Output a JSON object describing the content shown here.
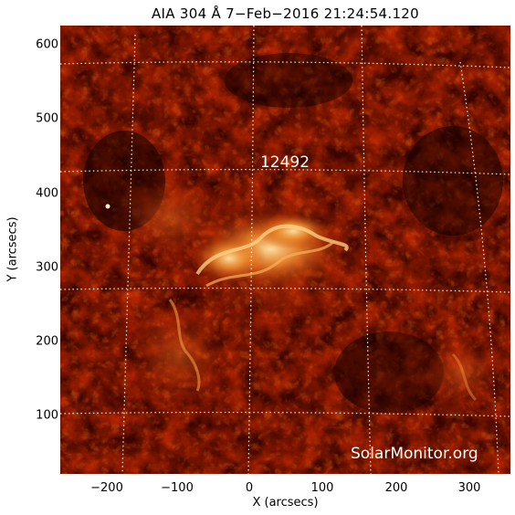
{
  "header": {
    "title": "AIA 304 Å  7−Feb−2016 21:24:54.120"
  },
  "axes": {
    "x_label": "X (arcsecs)",
    "y_label": "Y (arcsecs)",
    "x_ticks": [
      "−200",
      "−100",
      "0",
      "100",
      "200",
      "300"
    ],
    "y_ticks": [
      "100",
      "200",
      "300",
      "400",
      "500",
      "600"
    ]
  },
  "overlay": {
    "region_label": "12492"
  },
  "watermark": "SolarMonitor.org",
  "colors": {
    "background": "#ffffff",
    "image_dark": "#1a0000",
    "image_mid": "#b02200",
    "image_bright": "#ffd88a",
    "grid": "#ffffff"
  }
}
